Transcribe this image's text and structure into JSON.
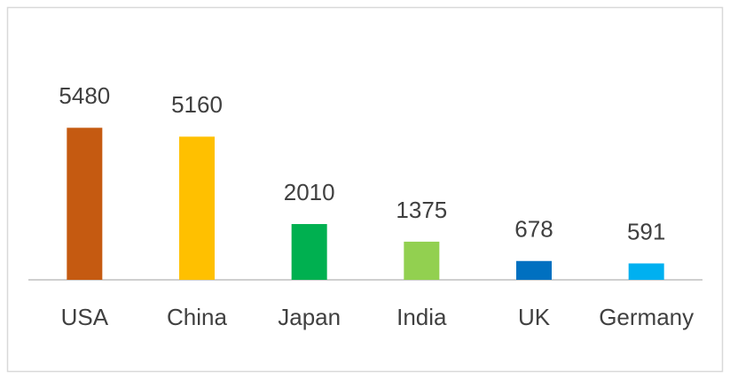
{
  "chart_data": {
    "type": "bar",
    "categories": [
      "USA",
      "China",
      "Japan",
      "India",
      "UK",
      "Germany"
    ],
    "values": [
      5480,
      5160,
      2010,
      1375,
      678,
      591
    ],
    "colors": [
      "#c55a11",
      "#ffc000",
      "#00b050",
      "#92d050",
      "#0070c0",
      "#00b0f0"
    ],
    "ylim": [
      0,
      6000
    ]
  }
}
